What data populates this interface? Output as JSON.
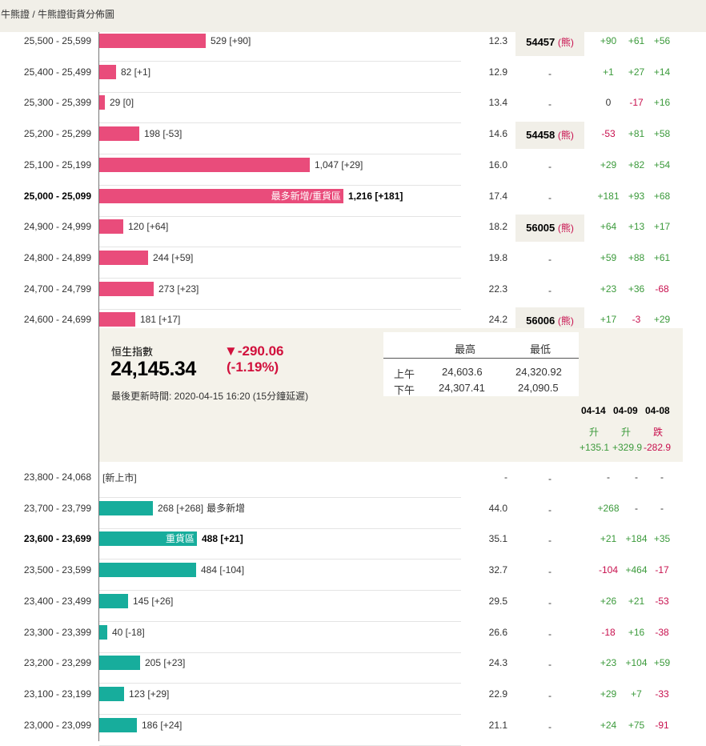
{
  "breadcrumb": {
    "part1": "牛熊證",
    "separator": " / ",
    "part2": "牛熊證街貨分佈圖"
  },
  "bull_rows": [
    {
      "range": "25,500 - 25,599",
      "bold": false,
      "bar": 529,
      "label": "529 [+90]",
      "inbar": "",
      "pct": "12.3",
      "code": "54457",
      "d1": "+90",
      "d2": "+61",
      "d3": "+56"
    },
    {
      "range": "25,400 - 25,499",
      "bold": false,
      "bar": 82,
      "label": "82 [+1]",
      "inbar": "",
      "pct": "12.9",
      "code": "",
      "d1": "+1",
      "d2": "+27",
      "d3": "+14"
    },
    {
      "range": "25,300 - 25,399",
      "bold": false,
      "bar": 29,
      "label": "29 [0]",
      "inbar": "",
      "pct": "13.4",
      "code": "",
      "d1": "0",
      "d2": "-17",
      "d3": "+16"
    },
    {
      "range": "25,200 - 25,299",
      "bold": false,
      "bar": 198,
      "label": "198 [-53]",
      "inbar": "",
      "pct": "14.6",
      "code": "54458",
      "d1": "-53",
      "d2": "+81",
      "d3": "+58"
    },
    {
      "range": "25,100 - 25,199",
      "bold": false,
      "bar": 1047,
      "label": "1,047 [+29]",
      "inbar": "",
      "pct": "16.0",
      "code": "",
      "d1": "+29",
      "d2": "+82",
      "d3": "+54"
    },
    {
      "range": "25,000 - 25,099",
      "bold": true,
      "bar": 1216,
      "label": "1,216 [+181]",
      "inbar": "最多新增/重貨區",
      "pct": "17.4",
      "code": "",
      "d1": "+181",
      "d2": "+93",
      "d3": "+68"
    },
    {
      "range": "24,900 - 24,999",
      "bold": false,
      "bar": 120,
      "label": "120 [+64]",
      "inbar": "",
      "pct": "18.2",
      "code": "56005",
      "d1": "+64",
      "d2": "+13",
      "d3": "+17"
    },
    {
      "range": "24,800 - 24,899",
      "bold": false,
      "bar": 244,
      "label": "244 [+59]",
      "inbar": "",
      "pct": "19.8",
      "code": "",
      "d1": "+59",
      "d2": "+88",
      "d3": "+61"
    },
    {
      "range": "24,700 - 24,799",
      "bold": false,
      "bar": 273,
      "label": "273 [+23]",
      "inbar": "",
      "pct": "22.3",
      "code": "",
      "d1": "+23",
      "d2": "+36",
      "d3": "-68"
    },
    {
      "range": "24,600 - 24,699",
      "bold": false,
      "bar": 181,
      "label": "181 [+17]",
      "inbar": "",
      "pct": "24.2",
      "code": "56006",
      "d1": "+17",
      "d2": "-3",
      "d3": "+29"
    }
  ],
  "bull_tag": "熊",
  "code_paren_open": "(",
  "code_paren_close": ")",
  "empty_code": "-",
  "index": {
    "name": "恒生指數",
    "value": "24,145.34",
    "change": "▼-290.06",
    "change_pct": "(-1.19%)",
    "updated": "最後更新時間: 2020-04-15 16:20 (15分鐘延遲)",
    "table": {
      "h_high": "最高",
      "h_low": "最低",
      "am_label": "上午",
      "am_high": "24,603.6",
      "am_low": "24,320.92",
      "pm_label": "下午",
      "pm_high": "24,307.41",
      "pm_low": "24,090.5"
    },
    "dates": [
      "04-14",
      "04-09",
      "04-08"
    ],
    "dirs": [
      "升",
      "升",
      "跌"
    ],
    "date_changes": [
      "+135.1",
      "+329.9",
      "-282.9"
    ]
  },
  "bear_rows": [
    {
      "range": "23,800 - 24,068",
      "bold": false,
      "bar": 0,
      "label": "[新上市]",
      "inbar": "",
      "extra": "",
      "pct": "-",
      "code": "-",
      "d1": "-",
      "d2": "-",
      "d3": "-"
    },
    {
      "range": "23,700 - 23,799",
      "bold": false,
      "bar": 268,
      "label": "268 [+268]",
      "inbar": "",
      "extra": "最多新增",
      "pct": "44.0",
      "code": "-",
      "d1": "+268",
      "d2": "-",
      "d3": "-"
    },
    {
      "range": "23,600 - 23,699",
      "bold": true,
      "bar": 488,
      "label": "488 [+21]",
      "inbar": "重貨區",
      "extra": "",
      "pct": "35.1",
      "code": "-",
      "d1": "+21",
      "d2": "+184",
      "d3": "+35"
    },
    {
      "range": "23,500 - 23,599",
      "bold": false,
      "bar": 484,
      "label": "484 [-104]",
      "inbar": "",
      "extra": "",
      "pct": "32.7",
      "code": "-",
      "d1": "-104",
      "d2": "+464",
      "d3": "-17"
    },
    {
      "range": "23,400 - 23,499",
      "bold": false,
      "bar": 145,
      "label": "145 [+26]",
      "inbar": "",
      "extra": "",
      "pct": "29.5",
      "code": "-",
      "d1": "+26",
      "d2": "+21",
      "d3": "-53"
    },
    {
      "range": "23,300 - 23,399",
      "bold": false,
      "bar": 40,
      "label": "40 [-18]",
      "inbar": "",
      "extra": "",
      "pct": "26.6",
      "code": "-",
      "d1": "-18",
      "d2": "+16",
      "d3": "-38"
    },
    {
      "range": "23,200 - 23,299",
      "bold": false,
      "bar": 205,
      "label": "205 [+23]",
      "inbar": "",
      "extra": "",
      "pct": "24.3",
      "code": "-",
      "d1": "+23",
      "d2": "+104",
      "d3": "+59"
    },
    {
      "range": "23,100 - 23,199",
      "bold": false,
      "bar": 123,
      "label": "123 [+29]",
      "inbar": "",
      "extra": "",
      "pct": "22.9",
      "code": "-",
      "d1": "+29",
      "d2": "+7",
      "d3": "-33"
    },
    {
      "range": "23,000 - 23,099",
      "bold": false,
      "bar": 186,
      "label": "186 [+24]",
      "inbar": "",
      "extra": "",
      "pct": "21.1",
      "code": "-",
      "d1": "+24",
      "d2": "+75",
      "d3": "-91"
    }
  ],
  "colors": {
    "bull": "#e94c7b",
    "bear": "#17ad9c",
    "up": "#3b9a3b",
    "down": "#c8104e",
    "panel": "#f4f2ea"
  }
}
